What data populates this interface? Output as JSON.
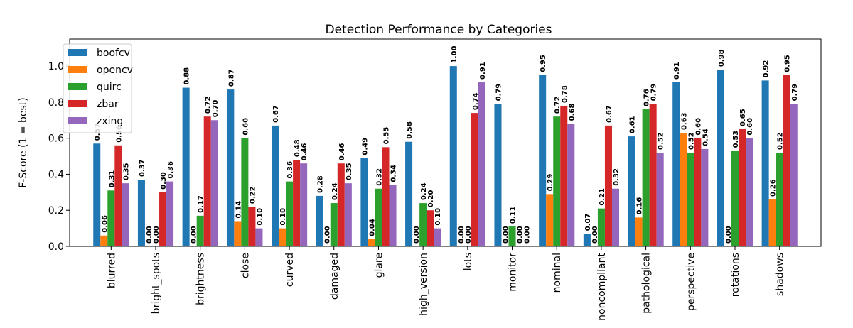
{
  "chart_data": {
    "type": "bar",
    "title": "Detection Performance by Categories",
    "xlabel": "",
    "ylabel": "F-Score (1 = best)",
    "ylim": [
      0,
      1.15
    ],
    "yticks": [
      "0.0",
      "0.2",
      "0.4",
      "0.6",
      "0.8",
      "1.0"
    ],
    "legend_position": "top-left",
    "categories": [
      "blurred",
      "bright_spots",
      "brightness",
      "close",
      "curved",
      "damaged",
      "glare",
      "high_version",
      "lots",
      "monitor",
      "nominal",
      "noncompliant",
      "pathological",
      "perspective",
      "rotations",
      "shadows"
    ],
    "series": [
      {
        "name": "boofcv",
        "color": "#1f77b4",
        "values": [
          0.57,
          0.37,
          0.88,
          0.87,
          0.67,
          0.28,
          0.49,
          0.58,
          1.0,
          0.79,
          0.95,
          0.07,
          0.61,
          0.91,
          0.98,
          0.92
        ]
      },
      {
        "name": "opencv",
        "color": "#ff7f0e",
        "values": [
          0.06,
          0.0,
          0.0,
          0.14,
          0.1,
          0.0,
          0.04,
          0.0,
          0.0,
          0.0,
          0.29,
          0.0,
          0.16,
          0.63,
          0.0,
          0.26
        ]
      },
      {
        "name": "quirc",
        "color": "#2ca02c",
        "values": [
          0.31,
          0.0,
          0.17,
          0.6,
          0.36,
          0.24,
          0.32,
          0.24,
          0.0,
          0.11,
          0.72,
          0.21,
          0.76,
          0.52,
          0.53,
          0.52
        ]
      },
      {
        "name": "zbar",
        "color": "#d62728",
        "values": [
          0.56,
          0.3,
          0.72,
          0.22,
          0.48,
          0.46,
          0.55,
          0.2,
          0.74,
          0.0,
          0.78,
          0.67,
          0.79,
          0.6,
          0.65,
          0.95
        ]
      },
      {
        "name": "zxing",
        "color": "#9467bd",
        "values": [
          0.35,
          0.36,
          0.7,
          0.1,
          0.46,
          0.35,
          0.34,
          0.1,
          0.91,
          0.0,
          0.68,
          0.32,
          0.52,
          0.54,
          0.6,
          0.79
        ]
      }
    ]
  }
}
